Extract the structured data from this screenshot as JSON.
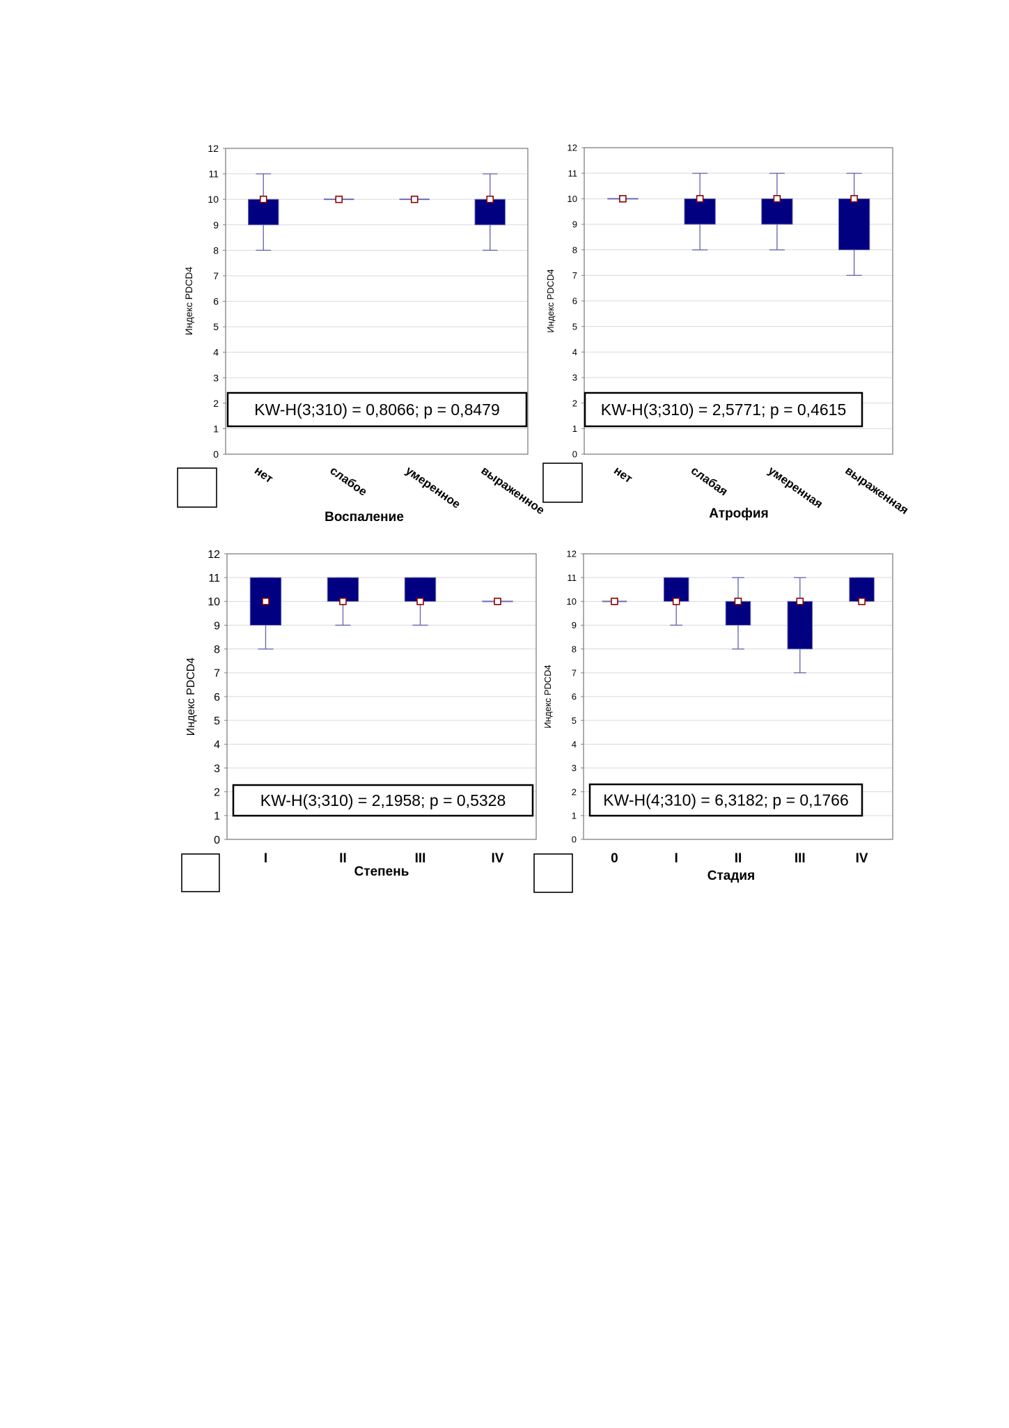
{
  "chart_data": [
    {
      "type": "box",
      "xlabel": "Воспаление",
      "ylabel": "Индекс PDCD4",
      "ylim": [
        0,
        12
      ],
      "yticks": [
        0,
        1,
        2,
        3,
        4,
        5,
        6,
        7,
        8,
        9,
        10,
        11,
        12
      ],
      "categories": [
        "нет",
        "слабое",
        "умеренное",
        "выраженное"
      ],
      "label_rotation": "rotated",
      "series": [
        {
          "median": [
            10,
            10,
            10,
            10
          ],
          "q1": [
            9,
            10,
            10,
            9
          ],
          "q3": [
            10,
            10,
            10,
            10
          ],
          "min": [
            8,
            10,
            10,
            8
          ],
          "max": [
            11,
            10,
            10,
            11
          ]
        }
      ],
      "annotation": "KW-H(3;310) = 0,8066; p = 0,8479",
      "legend": "bottom-left",
      "grid": true
    },
    {
      "type": "box",
      "xlabel": "Атрофия",
      "ylabel": "Индекс PDCD4",
      "ylim": [
        0,
        12
      ],
      "yticks": [
        0,
        1,
        2,
        3,
        4,
        5,
        6,
        7,
        8,
        9,
        10,
        11,
        12
      ],
      "categories": [
        "нет",
        "слабая",
        "умеренная",
        "выраженная"
      ],
      "label_rotation": "rotated",
      "series": [
        {
          "median": [
            10,
            10,
            10,
            10
          ],
          "q1": [
            10,
            9,
            9,
            8
          ],
          "q3": [
            10,
            10,
            10,
            10
          ],
          "min": [
            10,
            8,
            8,
            7
          ],
          "max": [
            10,
            11,
            11,
            11
          ]
        }
      ],
      "annotation": "KW-H(3;310) = 2,5771; p = 0,4615",
      "legend": "bottom-left",
      "grid": true
    },
    {
      "type": "box",
      "xlabel": "Степень",
      "ylabel": "Индекс PDCD4",
      "ylim": [
        0,
        12
      ],
      "yticks": [
        0,
        1,
        2,
        3,
        4,
        5,
        6,
        7,
        8,
        9,
        10,
        11,
        12
      ],
      "categories": [
        "I",
        "II",
        "III",
        "IV"
      ],
      "label_rotation": "horizontal",
      "series": [
        {
          "median": [
            10,
            10,
            10,
            10
          ],
          "q1": [
            9,
            10,
            10,
            10
          ],
          "q3": [
            11,
            11,
            11,
            10
          ],
          "min": [
            8,
            9,
            9,
            10
          ],
          "max": [
            11,
            11,
            11,
            10
          ]
        }
      ],
      "annotation": "KW-H(3;310) = 2,1958; p = 0,5328",
      "legend": "bottom-left",
      "grid": true
    },
    {
      "type": "box",
      "xlabel": "Стадия",
      "ylabel": "Индекс PDCD4",
      "ylim": [
        0,
        12
      ],
      "yticks": [
        0,
        1,
        2,
        3,
        4,
        5,
        6,
        7,
        8,
        9,
        10,
        11,
        12
      ],
      "categories": [
        "0",
        "I",
        "II",
        "III",
        "IV"
      ],
      "label_rotation": "horizontal",
      "series": [
        {
          "median": [
            10,
            10,
            10,
            10,
            10
          ],
          "q1": [
            10,
            10,
            9,
            8,
            10
          ],
          "q3": [
            10,
            11,
            10,
            10,
            11
          ],
          "min": [
            10,
            9,
            8,
            7,
            10
          ],
          "max": [
            10,
            11,
            11,
            11,
            11
          ]
        }
      ],
      "annotation": "KW-H(4;310) = 6,3182; p = 0,1766",
      "legend": "bottom-left",
      "grid": true
    }
  ],
  "colors": {
    "box_fill": "#000080",
    "whisker": "#6b6bb3",
    "median_fill": "#ffffff",
    "median_stroke": "#8b0000",
    "grid": "#d9d9d9",
    "frame": "#808080",
    "text": "#000000"
  }
}
